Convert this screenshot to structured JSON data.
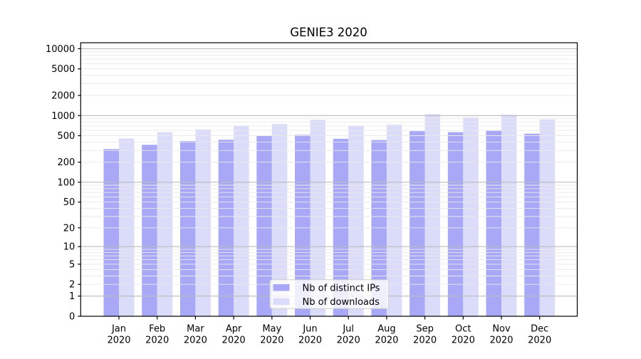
{
  "window": {
    "background": "#ffffff"
  },
  "chart_data": {
    "type": "bar",
    "title": "GENIE3 2020",
    "categories": [
      "Jan",
      "Feb",
      "Mar",
      "Apr",
      "May",
      "Jun",
      "Jul",
      "Aug",
      "Sep",
      "Oct",
      "Nov",
      "Dec"
    ],
    "year": "2020",
    "series": [
      {
        "name": "Nb of distinct IPs",
        "color": "#a8a8f6",
        "values": [
          315,
          365,
          415,
          435,
          505,
          515,
          450,
          430,
          585,
          565,
          590,
          535
        ]
      },
      {
        "name": "Nb of downloads",
        "color": "#dbdbfa",
        "values": [
          455,
          565,
          620,
          700,
          745,
          865,
          700,
          730,
          1055,
          940,
          1030,
          875
        ]
      }
    ],
    "yaxis": {
      "ticks": [
        0,
        1,
        2,
        5,
        10,
        20,
        50,
        100,
        200,
        500,
        1000,
        2000,
        5000,
        10000
      ],
      "scale": "log10(value+1)",
      "max": 12000
    },
    "xlabel": "",
    "ylabel": "",
    "grid": {
      "enabled": "both",
      "major_color": "#bcbcbc",
      "minor_color": "#e9e9e9"
    },
    "legend": {
      "position": "bottom-center",
      "background": "#ffffff",
      "border_color": "#cccccc"
    }
  }
}
